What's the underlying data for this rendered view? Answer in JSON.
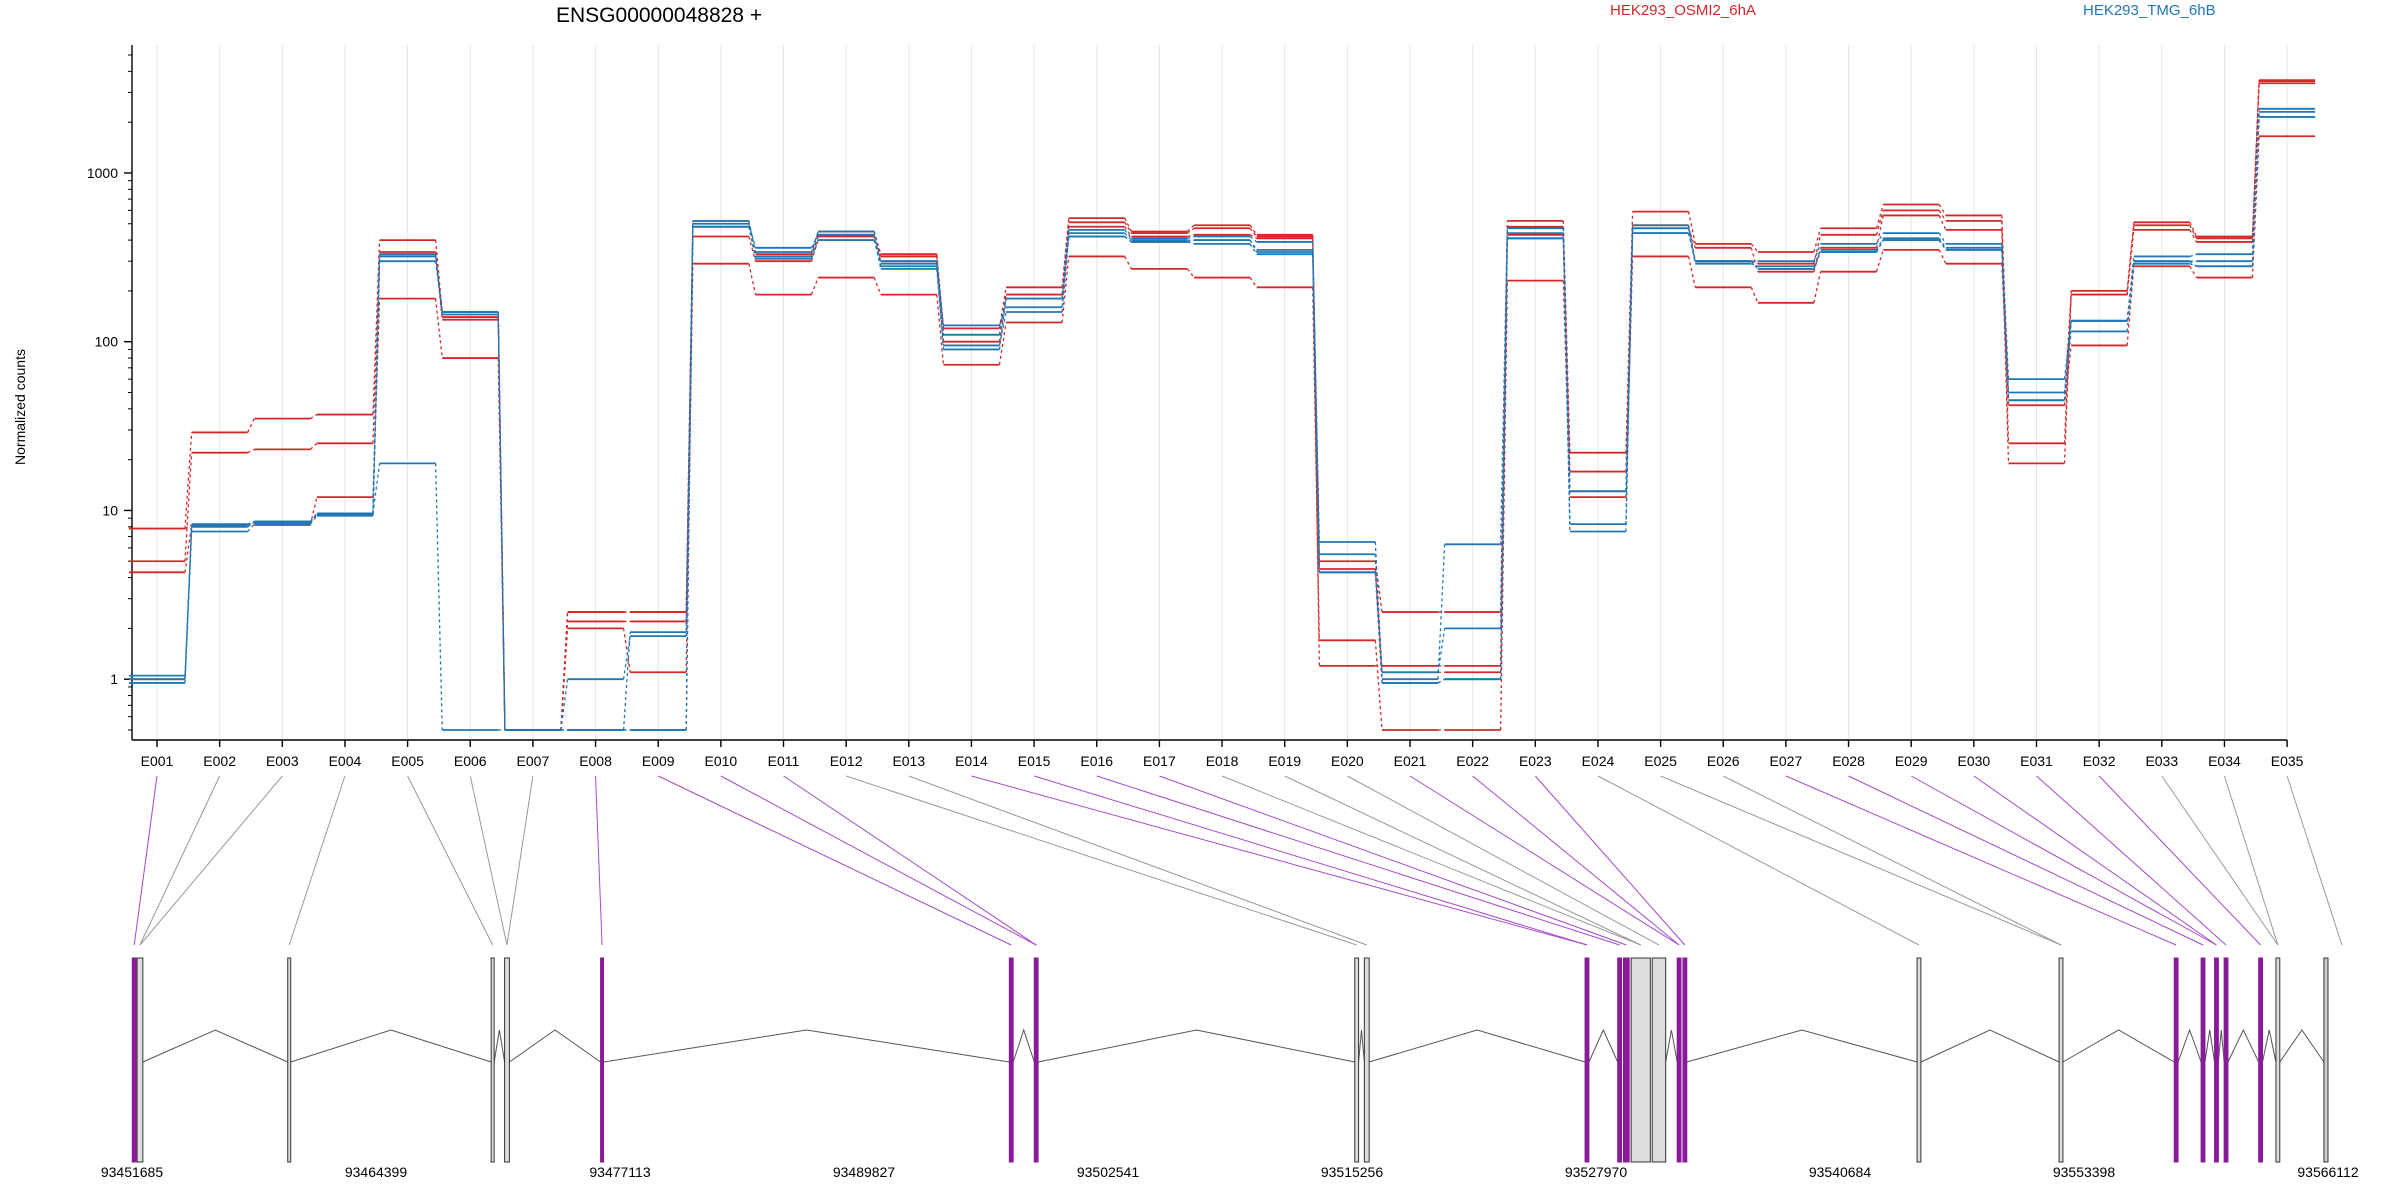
{
  "chart_data": {
    "type": "line",
    "title": "ENSG00000048828 +",
    "ylabel": "Normalized counts",
    "yscale": "log",
    "ylim": [
      0.5,
      5000
    ],
    "yticks": [
      1,
      10,
      100,
      1000
    ],
    "ytick_labels": [
      "1",
      "10",
      "100",
      "1000"
    ],
    "x_grid": true,
    "legend_position": "top",
    "categories": [
      "E001",
      "E002",
      "E003",
      "E004",
      "E005",
      "E006",
      "E007",
      "E008",
      "E009",
      "E010",
      "E011",
      "E012",
      "E013",
      "E014",
      "E015",
      "E016",
      "E017",
      "E018",
      "E019",
      "E020",
      "E021",
      "E022",
      "E023",
      "E024",
      "E025",
      "E026",
      "E027",
      "E028",
      "E029",
      "E030",
      "E031",
      "E032",
      "E033",
      "E034",
      "E035"
    ],
    "groups": [
      {
        "name": "HEK293_OSMI2_6hA",
        "color": "#d62728"
      },
      {
        "name": "HEK293_TMG_6hB",
        "color": "#1f77b4"
      }
    ],
    "series": [
      {
        "group": 0,
        "values": [
          7.8,
          29,
          35,
          37,
          400,
          150,
          0.5,
          2.5,
          2.5,
          520,
          330,
          450,
          330,
          120,
          210,
          540,
          450,
          490,
          430,
          5,
          2.5,
          2.5,
          520,
          22,
          590,
          380,
          340,
          470,
          650,
          560,
          25,
          200,
          510,
          420,
          3500
        ]
      },
      {
        "group": 0,
        "values": [
          5,
          22,
          23,
          25,
          340,
          140,
          0.5,
          2.2,
          2.2,
          420,
          300,
          400,
          300,
          100,
          190,
          480,
          420,
          430,
          410,
          4.5,
          1.1,
          1.1,
          430,
          17,
          470,
          360,
          260,
          360,
          560,
          460,
          19,
          190,
          460,
          390,
          3400
        ]
      },
      {
        "group": 0,
        "values": [
          4.3,
          8.2,
          8.2,
          12,
          180,
          80,
          0.5,
          2,
          1.1,
          290,
          190,
          240,
          190,
          73,
          130,
          320,
          270,
          240,
          210,
          1.7,
          0.5,
          0.5,
          230,
          12,
          320,
          210,
          170,
          260,
          350,
          290,
          42,
          95,
          280,
          240,
          1650
        ]
      },
      {
        "group": 0,
        "values": [
          7.8,
          8.2,
          8.5,
          9.5,
          330,
          135,
          0.5,
          2.5,
          2.5,
          480,
          320,
          420,
          320,
          110,
          190,
          510,
          440,
          470,
          420,
          1.2,
          1.2,
          1.2,
          480,
          13,
          490,
          300,
          290,
          430,
          600,
          520,
          45,
          190,
          490,
          410,
          3550
        ]
      },
      {
        "group": 1,
        "values": [
          0.95,
          7.5,
          8.3,
          9.3,
          300,
          150,
          0.5,
          0.5,
          0.5,
          520,
          340,
          450,
          300,
          110,
          180,
          460,
          410,
          420,
          390,
          6.5,
          1,
          6.3,
          470,
          8.3,
          490,
          300,
          300,
          380,
          440,
          380,
          60,
          133,
          320,
          330,
          2400
        ]
      },
      {
        "group": 1,
        "values": [
          1.05,
          8,
          8.5,
          9.5,
          330,
          150,
          0.5,
          1,
          1.8,
          500,
          360,
          430,
          290,
          125,
          160,
          440,
          400,
          400,
          350,
          5.5,
          1.1,
          2,
          440,
          7.5,
          470,
          290,
          280,
          350,
          410,
          360,
          50,
          115,
          300,
          300,
          2300
        ]
      },
      {
        "group": 1,
        "values": [
          1,
          8.3,
          8.6,
          9.6,
          320,
          145,
          0.5,
          0.5,
          1.9,
          480,
          310,
          400,
          280,
          95,
          150,
          420,
          390,
          380,
          330,
          4.3,
          0.95,
          1,
          410,
          13,
          440,
          300,
          270,
          340,
          400,
          350,
          45,
          133,
          290,
          280,
          2150
        ]
      },
      {
        "group": 1,
        "values": [
          1,
          8.2,
          8.6,
          9.6,
          19,
          0.5,
          0.5,
          0.5,
          0.5,
          480,
          320,
          430,
          270,
          90,
          180,
          420,
          390,
          400,
          340,
          4.3,
          0.95,
          1,
          410,
          13,
          440,
          300,
          270,
          340,
          400,
          350,
          45,
          133,
          300,
          280,
          2150
        ]
      }
    ],
    "genomic_axis": {
      "tick_labels": [
        "93451685",
        "93464399",
        "93477113",
        "93489827",
        "93502541",
        "93515256",
        "93527970",
        "93540684",
        "93553398",
        "93566112"
      ],
      "range": [
        93451685,
        93566112
      ],
      "exons": [
        {
          "start": 93451700,
          "end": 93451900,
          "highlight": true
        },
        {
          "start": 93451950,
          "end": 93452250,
          "highlight": false
        },
        {
          "start": 93459800,
          "end": 93459950,
          "highlight": false
        },
        {
          "start": 93470400,
          "end": 93470550,
          "highlight": false
        },
        {
          "start": 93471100,
          "end": 93471350,
          "highlight": false
        },
        {
          "start": 93476100,
          "end": 93476250,
          "highlight": true
        },
        {
          "start": 93497400,
          "end": 93497600,
          "highlight": true
        },
        {
          "start": 93498700,
          "end": 93498900,
          "highlight": true
        },
        {
          "start": 93515400,
          "end": 93515600,
          "highlight": false
        },
        {
          "start": 93515900,
          "end": 93516150,
          "highlight": false
        },
        {
          "start": 93527400,
          "end": 93527600,
          "highlight": true
        },
        {
          "start": 93529100,
          "end": 93529300,
          "highlight": true
        },
        {
          "start": 93529400,
          "end": 93529700,
          "highlight": true
        },
        {
          "start": 93529800,
          "end": 93530800,
          "highlight": false
        },
        {
          "start": 93530900,
          "end": 93531600,
          "highlight": false
        },
        {
          "start": 93532200,
          "end": 93532400,
          "highlight": true
        },
        {
          "start": 93532500,
          "end": 93532700,
          "highlight": true
        },
        {
          "start": 93544700,
          "end": 93544900,
          "highlight": false
        },
        {
          "start": 93552100,
          "end": 93552300,
          "highlight": false
        },
        {
          "start": 93558100,
          "end": 93558300,
          "highlight": true
        },
        {
          "start": 93559500,
          "end": 93559700,
          "highlight": true
        },
        {
          "start": 93560200,
          "end": 93560400,
          "highlight": true
        },
        {
          "start": 93560700,
          "end": 93560900,
          "highlight": true
        },
        {
          "start": 93562500,
          "end": 93562700,
          "highlight": true
        },
        {
          "start": 93563400,
          "end": 93563600,
          "highlight": false
        },
        {
          "start": 93565900,
          "end": 93566112,
          "highlight": false,
          "wide": true
        }
      ]
    }
  }
}
